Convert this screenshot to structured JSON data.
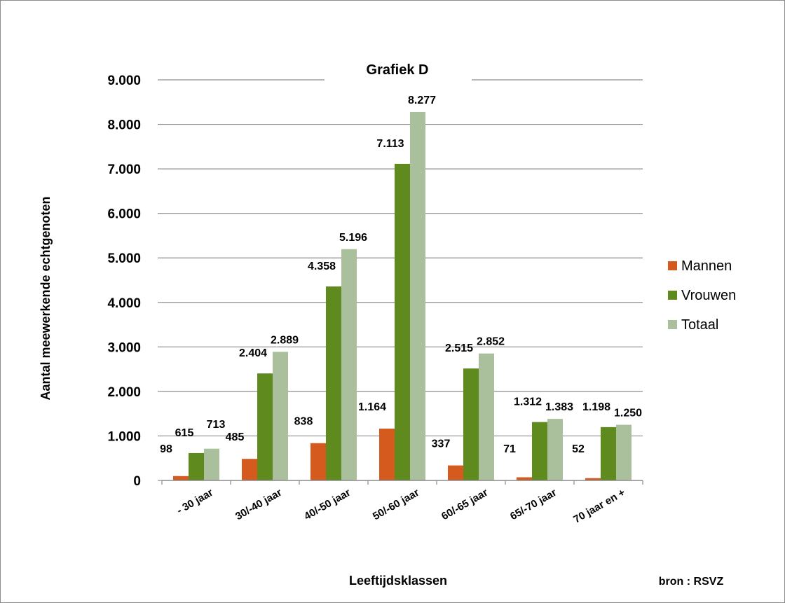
{
  "chart_data": {
    "type": "bar",
    "title": "Grafiek D",
    "xlabel": "Leeftijdsklassen",
    "ylabel": "Aantal meewerkende echtgenoten",
    "source": "bron : RSVZ",
    "categories": [
      "- 30 jaar",
      "30/-40 jaar",
      "40/-50 jaar",
      "50/-60 jaar",
      "60/-65 jaar",
      "65/-70 jaar",
      "70 jaar en +"
    ],
    "series": [
      {
        "name": "Mannen",
        "color": "#d45a1e",
        "values": [
          98,
          485,
          838,
          1164,
          337,
          71,
          52
        ],
        "labels": [
          "98",
          "485",
          "838",
          "1.164",
          "337",
          "71",
          "52"
        ]
      },
      {
        "name": "Vrouwen",
        "color": "#5f8a1e",
        "values": [
          615,
          2404,
          4358,
          7113,
          2515,
          1312,
          1198
        ],
        "labels": [
          "615",
          "2.404",
          "4.358",
          "7.113",
          "2.515",
          "1.312",
          "1.198"
        ]
      },
      {
        "name": "Totaal",
        "color": "#aabf9b",
        "values": [
          713,
          2889,
          5196,
          8277,
          2852,
          1383,
          1250
        ],
        "labels": [
          "713",
          "2.889",
          "5.196",
          "8.277",
          "2.852",
          "1.383",
          "1.250"
        ]
      }
    ],
    "ylim": [
      0,
      9000
    ],
    "yticks": [
      "0",
      "1.000",
      "2.000",
      "3.000",
      "4.000",
      "5.000",
      "6.000",
      "7.000",
      "8.000",
      "9.000"
    ],
    "grid": true,
    "legend_position": "right"
  }
}
